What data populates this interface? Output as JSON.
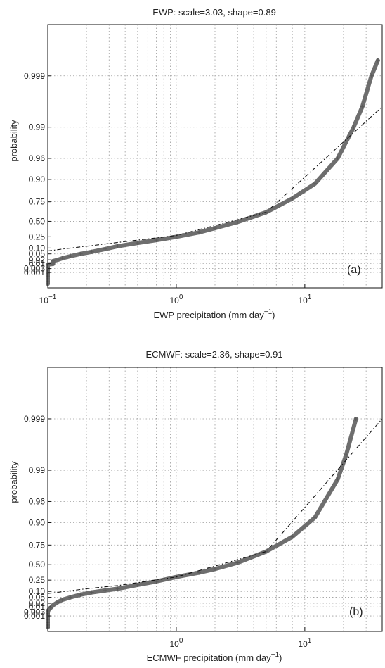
{
  "chart_data": [
    {
      "panel": "(a)",
      "type": "scatter",
      "title": "EWP: scale=3.03, shape=0.89",
      "xlabel": "EWP precipitation (mm day",
      "xlabel_exp": "−1",
      "xlabel_close": ")",
      "ylabel": "probability",
      "xscale": "log",
      "xlim": [
        0.1,
        40
      ],
      "x_tick_labels": [
        {
          "value": 0.1,
          "base": "10",
          "exp": "−1"
        },
        {
          "value": 1,
          "base": "10",
          "exp": "0"
        },
        {
          "value": 10,
          "base": "10",
          "exp": "1"
        }
      ],
      "y_tick_labels": [
        "0.999",
        "0.99",
        "0.96",
        "0.90",
        "0.75",
        "0.50",
        "0.25",
        "0.10",
        "0.05",
        "0.02",
        "0.01",
        "0.003",
        "0.001"
      ],
      "grid": true,
      "series": [
        {
          "style": "data-crosses",
          "points": [
            [
              0.1,
              1e-05
            ],
            [
              0.1,
              3e-05
            ],
            [
              0.1,
              0.0001
            ],
            [
              0.1,
              0.0003
            ],
            [
              0.1,
              0.0007
            ],
            [
              0.1,
              0.001
            ],
            [
              0.1,
              0.002
            ],
            [
              0.1,
              0.004
            ],
            [
              0.1,
              0.008
            ],
            [
              0.11,
              0.009
            ],
            [
              0.11,
              0.012
            ],
            [
              0.11,
              0.016
            ],
            [
              0.12,
              0.02
            ],
            [
              0.13,
              0.026
            ],
            [
              0.15,
              0.036
            ],
            [
              0.18,
              0.05
            ],
            [
              0.22,
              0.065
            ],
            [
              0.28,
              0.09
            ],
            [
              0.35,
              0.12
            ],
            [
              0.5,
              0.16
            ],
            [
              0.7,
              0.2
            ],
            [
              1.0,
              0.25
            ],
            [
              1.5,
              0.32
            ],
            [
              2.0,
              0.39
            ],
            [
              3.0,
              0.49
            ],
            [
              5.0,
              0.63
            ],
            [
              8.0,
              0.78
            ],
            [
              12.0,
              0.88
            ],
            [
              18.0,
              0.96
            ],
            [
              24.0,
              0.99
            ],
            [
              28.0,
              0.996
            ],
            [
              33.0,
              0.999
            ],
            [
              37.0,
              0.9995
            ]
          ]
        },
        {
          "style": "fitted-dash-dot",
          "points": [
            [
              0.1,
              0.072
            ],
            [
              0.13,
              0.09
            ],
            [
              0.2,
              0.12
            ],
            [
              0.5,
              0.2
            ],
            [
              1.0,
              0.27
            ],
            [
              5.0,
              0.63
            ],
            [
              40.0,
              0.996
            ]
          ]
        }
      ]
    },
    {
      "panel": "(b)",
      "type": "scatter",
      "title": "ECMWF: scale=2.36, shape=0.91",
      "xlabel": "ECMWF precipitation (mm day",
      "xlabel_exp": "−1",
      "xlabel_close": ")",
      "ylabel": "probability",
      "xscale": "log",
      "xlim": [
        0.1,
        40
      ],
      "x_tick_labels": [
        {
          "value": 1,
          "base": "10",
          "exp": "0"
        },
        {
          "value": 10,
          "base": "10",
          "exp": "1"
        }
      ],
      "y_tick_labels": [
        "0.999",
        "0.99",
        "0.96",
        "0.90",
        "0.75",
        "0.50",
        "0.25",
        "0.10",
        "0.05",
        "0.02",
        "0.01",
        "0.003",
        "0.001"
      ],
      "grid": true,
      "series": [
        {
          "style": "data-crosses",
          "points": [
            [
              0.1,
              1e-05
            ],
            [
              0.1,
              3e-05
            ],
            [
              0.1,
              0.0001
            ],
            [
              0.1,
              0.0003
            ],
            [
              0.1,
              0.0007
            ],
            [
              0.1,
              0.001
            ],
            [
              0.1,
              0.002
            ],
            [
              0.1,
              0.004
            ],
            [
              0.105,
              0.008
            ],
            [
              0.11,
              0.014
            ],
            [
              0.12,
              0.025
            ],
            [
              0.13,
              0.035
            ],
            [
              0.15,
              0.05
            ],
            [
              0.18,
              0.07
            ],
            [
              0.22,
              0.09
            ],
            [
              0.28,
              0.11
            ],
            [
              0.35,
              0.13
            ],
            [
              0.5,
              0.18
            ],
            [
              0.7,
              0.23
            ],
            [
              1.0,
              0.3
            ],
            [
              1.5,
              0.37
            ],
            [
              2.0,
              0.43
            ],
            [
              3.0,
              0.53
            ],
            [
              5.0,
              0.68
            ],
            [
              8.0,
              0.82
            ],
            [
              12.0,
              0.92
            ],
            [
              18.0,
              0.985
            ],
            [
              21.0,
              0.995
            ],
            [
              25.0,
              0.999
            ]
          ]
        },
        {
          "style": "fitted-dash-dot",
          "points": [
            [
              0.1,
              0.08
            ],
            [
              0.2,
              0.13
            ],
            [
              0.35,
              0.17
            ],
            [
              1.0,
              0.3
            ],
            [
              5.0,
              0.68
            ],
            [
              40.0,
              0.999
            ]
          ]
        }
      ]
    }
  ]
}
